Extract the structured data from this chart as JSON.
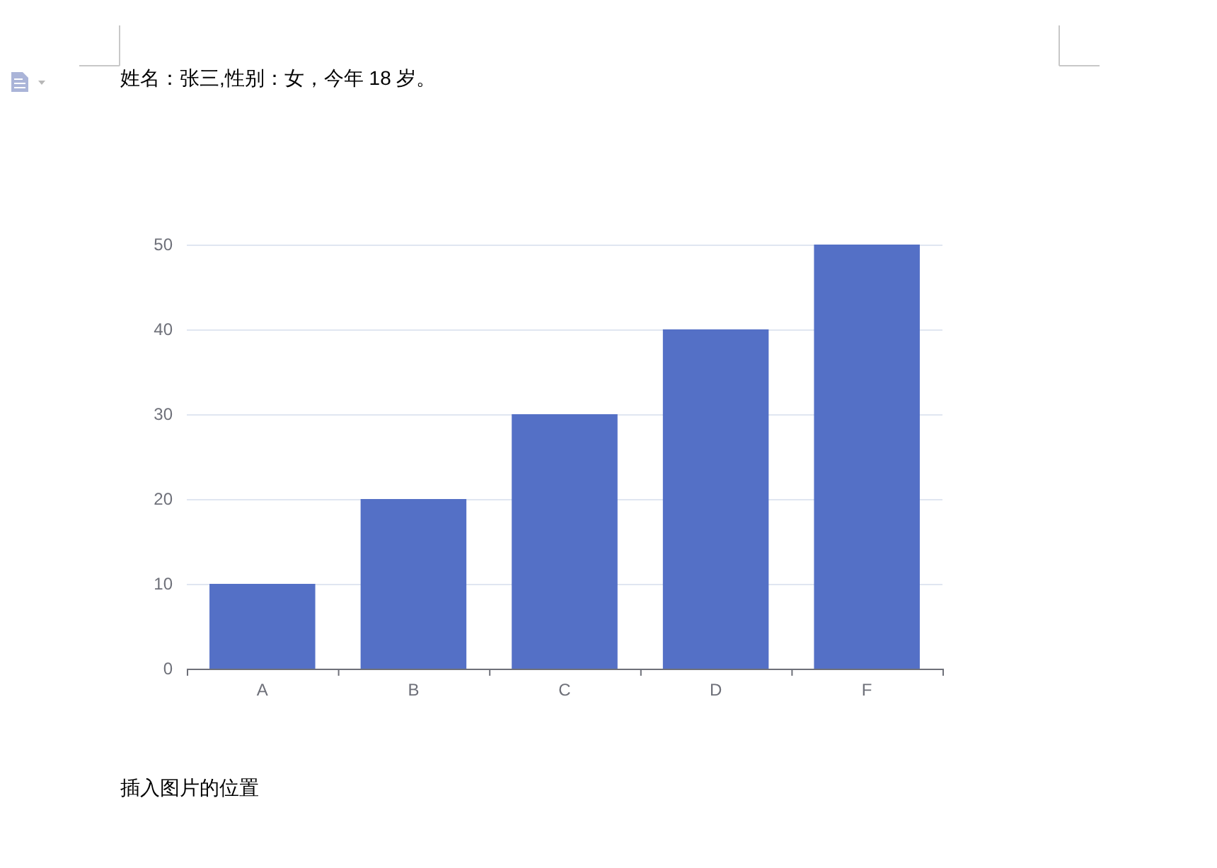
{
  "chart_data": {
    "type": "bar",
    "title": "姓名：张三,性别：女，今年 18 岁。",
    "categories": [
      "A",
      "B",
      "C",
      "D",
      "F"
    ],
    "values": [
      10,
      20,
      30,
      40,
      50
    ],
    "color": "#5470c6",
    "ylim": [
      0,
      50
    ],
    "yticks": [
      0,
      10,
      20,
      30,
      40,
      50
    ],
    "grid": "y",
    "annotations": [
      "插入图片的位置"
    ]
  }
}
